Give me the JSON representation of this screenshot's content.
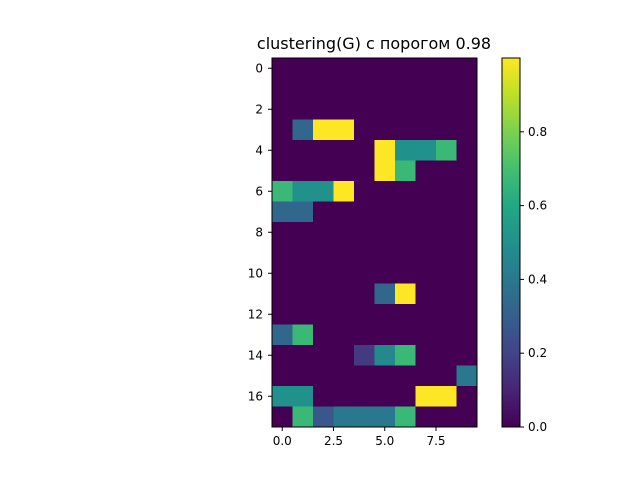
{
  "chart_data": {
    "type": "heatmap",
    "title": "clustering(G) с порогом 0.98",
    "xlabel": "",
    "ylabel": "",
    "rows": 18,
    "cols": 10,
    "x_ticks": [
      {
        "value": 0,
        "label": "0.0"
      },
      {
        "value": 2.5,
        "label": "2.5"
      },
      {
        "value": 5,
        "label": "5.0"
      },
      {
        "value": 7.5,
        "label": "7.5"
      }
    ],
    "y_ticks": [
      {
        "value": 0,
        "label": "0"
      },
      {
        "value": 2,
        "label": "2"
      },
      {
        "value": 4,
        "label": "4"
      },
      {
        "value": 6,
        "label": "6"
      },
      {
        "value": 8,
        "label": "8"
      },
      {
        "value": 10,
        "label": "10"
      },
      {
        "value": 12,
        "label": "12"
      },
      {
        "value": 14,
        "label": "14"
      },
      {
        "value": 16,
        "label": "16"
      }
    ],
    "colorbar": {
      "vmin": 0.0,
      "vmax": 1.0,
      "ticks": [
        {
          "value": 0.0,
          "label": "0.0"
        },
        {
          "value": 0.2,
          "label": "0.2"
        },
        {
          "value": 0.4,
          "label": "0.4"
        },
        {
          "value": 0.6,
          "label": "0.6"
        },
        {
          "value": 0.8,
          "label": "0.8"
        }
      ],
      "colormap": "viridis"
    },
    "values": [
      [
        0,
        0,
        0,
        0,
        0,
        0,
        0,
        0,
        0,
        0
      ],
      [
        0,
        0,
        0,
        0,
        0,
        0,
        0,
        0,
        0,
        0
      ],
      [
        0,
        0,
        0,
        0,
        0,
        0,
        0,
        0,
        0,
        0
      ],
      [
        0,
        0.33,
        1,
        1,
        0,
        0,
        0,
        0,
        0,
        0
      ],
      [
        0,
        0,
        0,
        0,
        0,
        1,
        0.5,
        0.5,
        0.67,
        0
      ],
      [
        0,
        0,
        0,
        0,
        0,
        1,
        0.67,
        0,
        0,
        0
      ],
      [
        0.67,
        0.5,
        0.5,
        1,
        0,
        0,
        0,
        0,
        0,
        0
      ],
      [
        0.33,
        0.33,
        0,
        0,
        0,
        0,
        0,
        0,
        0,
        0
      ],
      [
        0,
        0,
        0,
        0,
        0,
        0,
        0,
        0,
        0,
        0
      ],
      [
        0,
        0,
        0,
        0,
        0,
        0,
        0,
        0,
        0,
        0
      ],
      [
        0,
        0,
        0,
        0,
        0,
        0,
        0,
        0,
        0,
        0
      ],
      [
        0,
        0,
        0,
        0,
        0,
        0.33,
        1,
        0,
        0,
        0
      ],
      [
        0,
        0,
        0,
        0,
        0,
        0,
        0,
        0,
        0,
        0
      ],
      [
        0.33,
        0.67,
        0,
        0,
        0,
        0,
        0,
        0,
        0,
        0
      ],
      [
        0,
        0,
        0,
        0,
        0.17,
        0.47,
        0.67,
        0,
        0,
        0
      ],
      [
        0,
        0,
        0,
        0,
        0,
        0,
        0,
        0,
        0,
        0.4
      ],
      [
        0.5,
        0.5,
        0,
        0,
        0,
        0,
        0,
        1,
        1,
        0
      ],
      [
        0,
        0.67,
        0.27,
        0.4,
        0.4,
        0.4,
        0.67,
        0,
        0,
        0
      ]
    ]
  }
}
